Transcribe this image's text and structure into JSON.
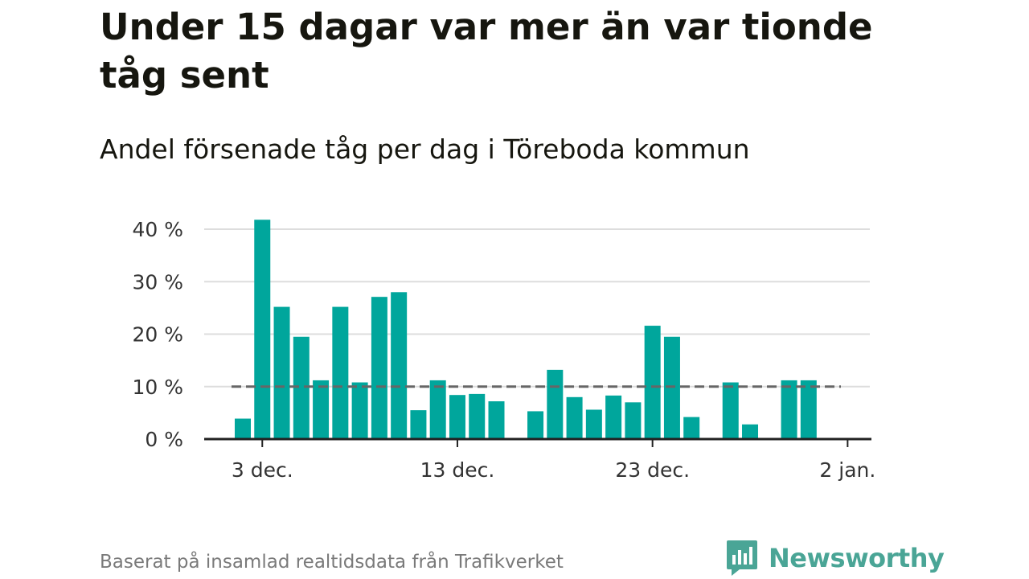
{
  "title": "Under 15 dagar var mer än var tionde tåg sent",
  "subtitle": "Andel försenade tåg per dag i Töreboda kommun",
  "source": "Baserat på insamlad realtidsdata från Trafikverket",
  "brand": {
    "name": "Newsworthy",
    "icon": "newsworthy-logo-icon",
    "color": "#4aa596"
  },
  "colors": {
    "bar": "#00a69c",
    "reference_line": "#666666",
    "grid": "#dddddd",
    "axis": "#222222"
  },
  "chart_data": {
    "type": "bar",
    "x_ticks": [
      "3 dec.",
      "13 dec.",
      "23 dec.",
      "2 jan."
    ],
    "y_ticks": [
      "0 %",
      "10 %",
      "20 %",
      "30 %",
      "40 %"
    ],
    "ylim": [
      0,
      40
    ],
    "grid": true,
    "reference_line": {
      "value": 10,
      "style": "dashed",
      "from": "2 dec.",
      "to": "1 jan."
    },
    "categories": [
      "2 dec.",
      "3 dec.",
      "4 dec.",
      "5 dec.",
      "6 dec.",
      "7 dec.",
      "8 dec.",
      "9 dec.",
      "10 dec.",
      "11 dec.",
      "12 dec.",
      "13 dec.",
      "14 dec.",
      "15 dec.",
      "16 dec.",
      "17 dec.",
      "18 dec.",
      "19 dec.",
      "20 dec.",
      "21 dec.",
      "22 dec.",
      "23 dec.",
      "24 dec.",
      "25 dec.",
      "26 dec.",
      "27 dec.",
      "28 dec.",
      "29 dec.",
      "30 dec.",
      "31 dec."
    ],
    "values": [
      3.9,
      41.8,
      25.2,
      19.5,
      11.2,
      25.2,
      10.8,
      27.1,
      28.0,
      5.5,
      11.2,
      8.4,
      8.6,
      7.2,
      null,
      5.3,
      13.2,
      8.0,
      5.6,
      8.3,
      7.0,
      21.6,
      19.5,
      4.2,
      null,
      10.8,
      2.8,
      null,
      11.2,
      11.2
    ]
  }
}
